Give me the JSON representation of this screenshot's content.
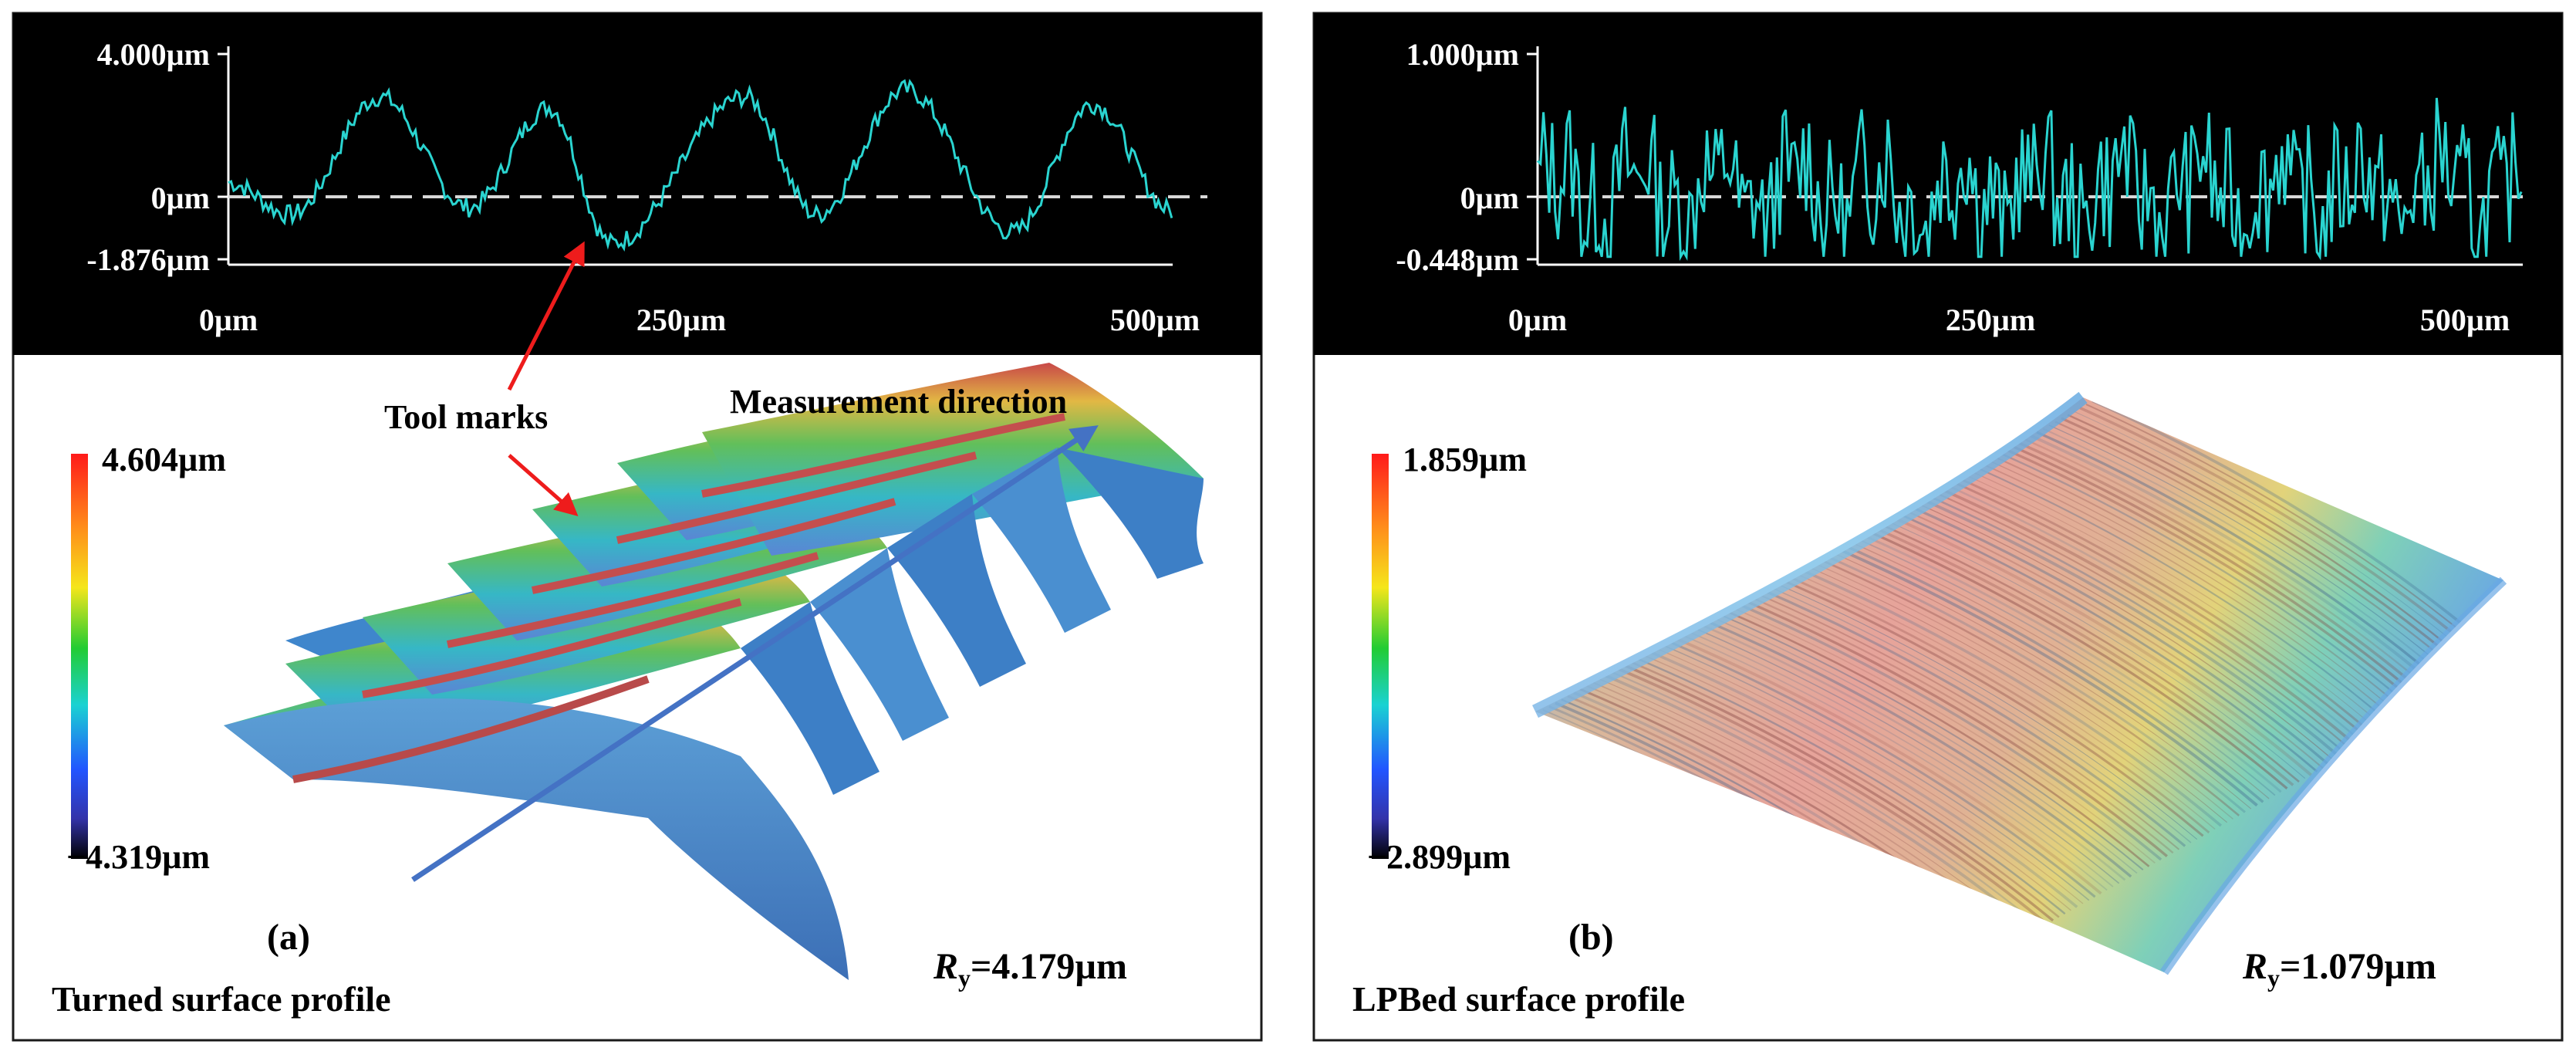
{
  "colors": {
    "profile_bg": "#000000",
    "trace": "#2ad4d0",
    "zero_line": "#d8d8d8",
    "axis": "#ffffff",
    "arrow_red": "#ee1c1c",
    "arrow_blue": "#4472c4",
    "panel_border": "#1a1a1a"
  },
  "panel_a": {
    "profile": {
      "y_top": "4.000µm",
      "y_zero": "0µm",
      "y_bottom": "-1.876µm",
      "x_labels": [
        "0µm",
        "250µm",
        "500µm"
      ],
      "x_values": [
        0,
        250,
        500
      ],
      "ylim": [
        -1.876,
        4.0
      ],
      "xlim": [
        0,
        530
      ],
      "peaks_x": [
        85,
        180,
        290,
        380,
        485
      ],
      "peaks_y": [
        2.8,
        2.5,
        2.8,
        3.0,
        2.6
      ],
      "valleys_x": [
        35,
        135,
        215,
        330,
        440
      ],
      "valleys_y": [
        -0.5,
        -0.3,
        -1.3,
        -0.5,
        -1.0
      ]
    },
    "colorbar": {
      "max": "4.604µm",
      "min": "−4.319µm"
    },
    "annotations": {
      "tool_marks": "Tool marks",
      "measurement": "Measurement direction"
    },
    "label": "(a)",
    "caption": "Turned surface profile",
    "ry_symbol": "R",
    "ry_sub": "y",
    "ry_value": "=4.179µm"
  },
  "panel_b": {
    "profile": {
      "y_top": "1.000µm",
      "y_zero": "0µm",
      "y_bottom": "-0.448µm",
      "x_labels": [
        "0µm",
        "250µm",
        "500µm"
      ],
      "x_values": [
        0,
        250,
        500
      ],
      "ylim": [
        -0.448,
        1.0
      ],
      "xlim": [
        0,
        540
      ]
    },
    "colorbar": {
      "max": "1.859µm",
      "min": "−2.899µm"
    },
    "label": "(b)",
    "caption": "LPBed surface profile",
    "ry_symbol": "R",
    "ry_sub": "y",
    "ry_value": "=1.079µm"
  }
}
